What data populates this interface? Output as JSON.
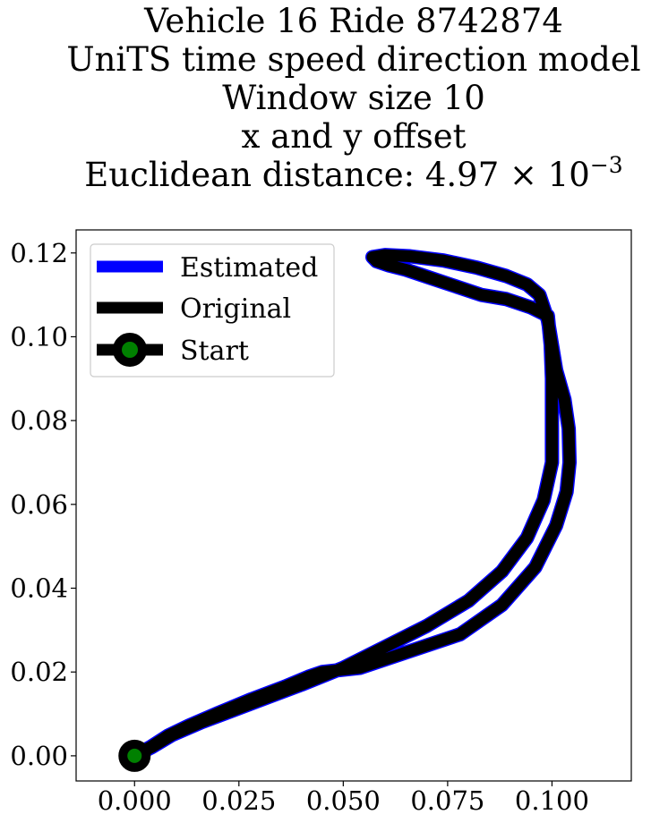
{
  "chart_data": {
    "type": "line",
    "title_lines": [
      "Vehicle 16 Ride 8742874",
      "UniTS time speed direction model",
      "Window size 10",
      "x and y offset",
      "Euclidean distance: 4.97 × 10"
    ],
    "title_exponent": "−3",
    "xlabel": "",
    "ylabel": "",
    "xlim": [
      -0.014,
      0.119
    ],
    "ylim": [
      -0.006,
      0.1255
    ],
    "x_ticks": [
      0.0,
      0.025,
      0.05,
      0.075,
      0.1
    ],
    "x_tick_labels": [
      "0.000",
      "0.025",
      "0.050",
      "0.075",
      "0.100"
    ],
    "y_ticks": [
      0.0,
      0.02,
      0.04,
      0.06,
      0.08,
      0.1,
      0.12
    ],
    "y_tick_labels": [
      "0.00",
      "0.02",
      "0.04",
      "0.06",
      "0.08",
      "0.10",
      "0.12"
    ],
    "grid": false,
    "legend_position": "top-left",
    "colors": {
      "estimated": "#0000ff",
      "original": "#000000",
      "start_marker_fill": "#008000"
    },
    "series": [
      {
        "name": "Estimated",
        "color": "#0000ff",
        "x": [
          0.0,
          0.004,
          0.009,
          0.016,
          0.024,
          0.032,
          0.04,
          0.05,
          0.06,
          0.07,
          0.08,
          0.088,
          0.094,
          0.098,
          0.1,
          0.1,
          0.1,
          0.0997,
          0.099,
          0.095,
          0.089,
          0.083,
          0.077,
          0.071,
          0.065,
          0.061,
          0.058,
          0.057,
          0.06,
          0.066,
          0.074,
          0.082,
          0.089,
          0.094,
          0.097,
          0.099,
          0.101,
          0.103,
          0.104,
          0.1042,
          0.1035,
          0.101,
          0.096,
          0.088,
          0.078,
          0.066,
          0.054,
          0.045,
          0.042,
          0.036,
          0.028,
          0.02,
          0.013,
          0.008,
          0.004,
          0.0
        ],
        "y": [
          0.0,
          0.002,
          0.005,
          0.008,
          0.011,
          0.014,
          0.017,
          0.021,
          0.026,
          0.031,
          0.037,
          0.044,
          0.052,
          0.061,
          0.07,
          0.08,
          0.09,
          0.098,
          0.105,
          0.107,
          0.109,
          0.11,
          0.112,
          0.114,
          0.116,
          0.117,
          0.118,
          0.119,
          0.1195,
          0.1192,
          0.1182,
          0.1165,
          0.1145,
          0.1125,
          0.11,
          0.104,
          0.092,
          0.085,
          0.078,
          0.07,
          0.063,
          0.055,
          0.045,
          0.036,
          0.029,
          0.025,
          0.021,
          0.02,
          0.019,
          0.0165,
          0.0135,
          0.0102,
          0.0072,
          0.0048,
          0.0022,
          0.0
        ]
      },
      {
        "name": "Original",
        "color": "#000000",
        "x": [
          0.0,
          0.004,
          0.009,
          0.016,
          0.024,
          0.032,
          0.04,
          0.05,
          0.06,
          0.07,
          0.08,
          0.088,
          0.094,
          0.098,
          0.1,
          0.1,
          0.1,
          0.0997,
          0.099,
          0.095,
          0.089,
          0.083,
          0.077,
          0.071,
          0.065,
          0.061,
          0.058,
          0.057,
          0.06,
          0.066,
          0.074,
          0.082,
          0.089,
          0.094,
          0.097,
          0.099,
          0.101,
          0.103,
          0.104,
          0.1042,
          0.1035,
          0.101,
          0.096,
          0.088,
          0.078,
          0.066,
          0.054,
          0.045,
          0.042,
          0.036,
          0.028,
          0.02,
          0.013,
          0.008,
          0.004,
          0.0
        ],
        "y": [
          0.0,
          0.002,
          0.005,
          0.008,
          0.011,
          0.014,
          0.017,
          0.021,
          0.026,
          0.031,
          0.037,
          0.044,
          0.052,
          0.061,
          0.07,
          0.08,
          0.09,
          0.098,
          0.105,
          0.107,
          0.109,
          0.11,
          0.112,
          0.114,
          0.116,
          0.117,
          0.118,
          0.119,
          0.1195,
          0.1192,
          0.1182,
          0.1165,
          0.1145,
          0.1125,
          0.11,
          0.104,
          0.092,
          0.085,
          0.078,
          0.07,
          0.063,
          0.055,
          0.045,
          0.036,
          0.029,
          0.025,
          0.021,
          0.02,
          0.019,
          0.0165,
          0.0135,
          0.0102,
          0.0072,
          0.0048,
          0.0022,
          0.0
        ]
      }
    ],
    "start_point": {
      "name": "Start",
      "x": 0.0,
      "y": 0.0
    }
  }
}
